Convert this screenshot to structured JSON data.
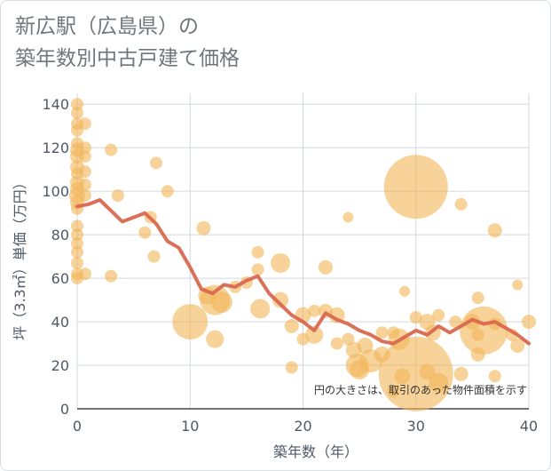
{
  "page": {
    "title_line1": "新広駅（広島県）の",
    "title_line2": "築年数別中古戸建て価格"
  },
  "chart_data": {
    "type": "scatter",
    "title": "新広駅（広島県）の 築年数別中古戸建て価格",
    "xlabel": "築年数（年）",
    "ylabel": "坪（3.3㎡）単価（万円）",
    "xlim": [
      0,
      40
    ],
    "ylim": [
      0,
      145
    ],
    "xticks": [
      0,
      10,
      20,
      30,
      40
    ],
    "yticks": [
      0,
      20,
      40,
      60,
      80,
      100,
      120,
      140
    ],
    "grid": true,
    "note": "円の大きさは、取引のあった物件面積を示す",
    "colors": {
      "bubble": "#f2b65a",
      "line": "#d9684f",
      "grid": "#d3d8de"
    },
    "bubbles": [
      {
        "x": 0,
        "y": 140,
        "size": 7
      },
      {
        "x": 0,
        "y": 136,
        "size": 7
      },
      {
        "x": 0,
        "y": 131,
        "size": 7
      },
      {
        "x": 0,
        "y": 128,
        "size": 7
      },
      {
        "x": 0,
        "y": 122,
        "size": 7
      },
      {
        "x": 0,
        "y": 119,
        "size": 8
      },
      {
        "x": 0,
        "y": 116,
        "size": 8
      },
      {
        "x": 0,
        "y": 111,
        "size": 8
      },
      {
        "x": 0,
        "y": 108,
        "size": 7
      },
      {
        "x": 0,
        "y": 104,
        "size": 8
      },
      {
        "x": 0,
        "y": 101,
        "size": 8
      },
      {
        "x": 0,
        "y": 98,
        "size": 9
      },
      {
        "x": 0,
        "y": 95,
        "size": 8
      },
      {
        "x": 0,
        "y": 92,
        "size": 7
      },
      {
        "x": 0,
        "y": 84,
        "size": 7
      },
      {
        "x": 0,
        "y": 80,
        "size": 7
      },
      {
        "x": 0,
        "y": 76,
        "size": 7
      },
      {
        "x": 0,
        "y": 72,
        "size": 7
      },
      {
        "x": 0,
        "y": 67,
        "size": 7
      },
      {
        "x": 0,
        "y": 62,
        "size": 7
      },
      {
        "x": 0,
        "y": 60,
        "size": 7
      },
      {
        "x": 0.7,
        "y": 131,
        "size": 7
      },
      {
        "x": 0.7,
        "y": 120,
        "size": 7
      },
      {
        "x": 0.7,
        "y": 116,
        "size": 7
      },
      {
        "x": 0.7,
        "y": 109,
        "size": 7
      },
      {
        "x": 0.7,
        "y": 103,
        "size": 7
      },
      {
        "x": 0.7,
        "y": 98,
        "size": 7
      },
      {
        "x": 0.7,
        "y": 62,
        "size": 7
      },
      {
        "x": 3,
        "y": 119,
        "size": 7
      },
      {
        "x": 3,
        "y": 61,
        "size": 7
      },
      {
        "x": 3.6,
        "y": 98,
        "size": 7
      },
      {
        "x": 6,
        "y": 81,
        "size": 7
      },
      {
        "x": 6.5,
        "y": 88,
        "size": 7
      },
      {
        "x": 6.8,
        "y": 70,
        "size": 7
      },
      {
        "x": 7,
        "y": 113,
        "size": 7
      },
      {
        "x": 8,
        "y": 100,
        "size": 7
      },
      {
        "x": 10,
        "y": 40,
        "size": 20
      },
      {
        "x": 11.2,
        "y": 83,
        "size": 8
      },
      {
        "x": 11.5,
        "y": 52,
        "size": 10
      },
      {
        "x": 12.2,
        "y": 50,
        "size": 17
      },
      {
        "x": 12.2,
        "y": 32,
        "size": 10
      },
      {
        "x": 12.8,
        "y": 49,
        "size": 12
      },
      {
        "x": 14,
        "y": 56,
        "size": 7
      },
      {
        "x": 15,
        "y": 58,
        "size": 7
      },
      {
        "x": 16,
        "y": 72,
        "size": 7
      },
      {
        "x": 16,
        "y": 64,
        "size": 7
      },
      {
        "x": 16.2,
        "y": 46,
        "size": 11
      },
      {
        "x": 18,
        "y": 67,
        "size": 11
      },
      {
        "x": 18,
        "y": 50,
        "size": 9
      },
      {
        "x": 19,
        "y": 19,
        "size": 7
      },
      {
        "x": 19,
        "y": 38,
        "size": 8
      },
      {
        "x": 20,
        "y": 43,
        "size": 9
      },
      {
        "x": 20,
        "y": 32,
        "size": 7
      },
      {
        "x": 21,
        "y": 45,
        "size": 7
      },
      {
        "x": 21,
        "y": 34,
        "size": 10
      },
      {
        "x": 22,
        "y": 65,
        "size": 8
      },
      {
        "x": 22,
        "y": 45,
        "size": 8
      },
      {
        "x": 23,
        "y": 43,
        "size": 9
      },
      {
        "x": 23,
        "y": 30,
        "size": 7
      },
      {
        "x": 24,
        "y": 88,
        "size": 6
      },
      {
        "x": 24,
        "y": 32,
        "size": 7
      },
      {
        "x": 24.5,
        "y": 27,
        "size": 9
      },
      {
        "x": 24.8,
        "y": 20,
        "size": 13
      },
      {
        "x": 25,
        "y": 18,
        "size": 11
      },
      {
        "x": 25.5,
        "y": 29,
        "size": 9
      },
      {
        "x": 26,
        "y": 22,
        "size": 13
      },
      {
        "x": 27,
        "y": 35,
        "size": 7
      },
      {
        "x": 27,
        "y": 25,
        "size": 9
      },
      {
        "x": 28,
        "y": 35,
        "size": 7
      },
      {
        "x": 28,
        "y": 8,
        "size": 7
      },
      {
        "x": 28.5,
        "y": 32,
        "size": 12
      },
      {
        "x": 28.8,
        "y": 15,
        "size": 9
      },
      {
        "x": 29,
        "y": 54,
        "size": 6
      },
      {
        "x": 30,
        "y": 102,
        "size": 36
      },
      {
        "x": 30,
        "y": 16,
        "size": 42
      },
      {
        "x": 30,
        "y": 42,
        "size": 7
      },
      {
        "x": 31,
        "y": 40,
        "size": 9
      },
      {
        "x": 31,
        "y": 17,
        "size": 9
      },
      {
        "x": 31.5,
        "y": 35,
        "size": 9
      },
      {
        "x": 32,
        "y": 12,
        "size": 11
      },
      {
        "x": 32,
        "y": 43,
        "size": 7
      },
      {
        "x": 33.5,
        "y": 40,
        "size": 7
      },
      {
        "x": 34,
        "y": 94,
        "size": 7
      },
      {
        "x": 34,
        "y": 16,
        "size": 8
      },
      {
        "x": 35,
        "y": 40,
        "size": 9
      },
      {
        "x": 35.5,
        "y": 51,
        "size": 7
      },
      {
        "x": 35.5,
        "y": 34,
        "size": 7
      },
      {
        "x": 35.5,
        "y": 25,
        "size": 8
      },
      {
        "x": 36,
        "y": 36,
        "size": 27
      },
      {
        "x": 37,
        "y": 82,
        "size": 8
      },
      {
        "x": 37,
        "y": 39,
        "size": 7
      },
      {
        "x": 37,
        "y": 15,
        "size": 7
      },
      {
        "x": 38.5,
        "y": 34,
        "size": 7
      },
      {
        "x": 39,
        "y": 57,
        "size": 6
      },
      {
        "x": 39,
        "y": 29,
        "size": 8
      },
      {
        "x": 40,
        "y": 40,
        "size": 8
      }
    ],
    "line": {
      "x": [
        0,
        1,
        2,
        3,
        4,
        5,
        6,
        7,
        8,
        9,
        10,
        11,
        12,
        13,
        14,
        15,
        16,
        17,
        18,
        19,
        20,
        21,
        22,
        23,
        24,
        25,
        26,
        27,
        28,
        29,
        30,
        31,
        32,
        33,
        34,
        35,
        36,
        37,
        38,
        39,
        40
      ],
      "y": [
        93,
        94,
        96,
        91,
        86,
        88,
        90,
        85,
        77,
        74,
        65,
        55,
        53,
        57,
        56,
        59,
        61,
        53,
        48,
        43,
        40,
        36,
        44,
        41,
        39,
        36,
        34,
        31,
        30,
        33,
        36,
        34,
        38,
        35,
        38,
        41,
        39,
        40,
        37,
        34,
        30
      ]
    }
  }
}
